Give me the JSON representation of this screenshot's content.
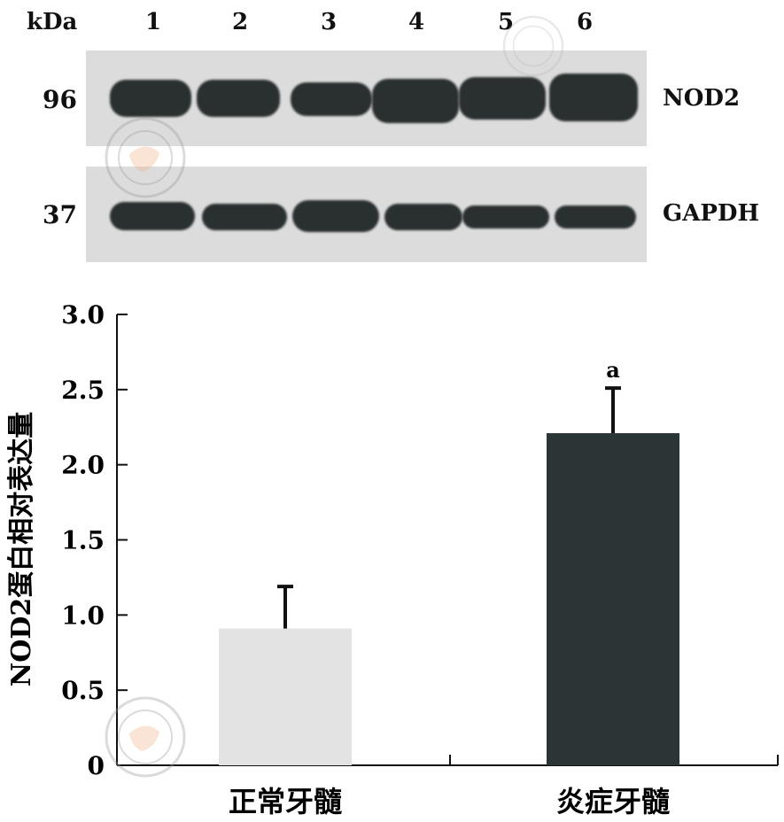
{
  "blot": {
    "kda_label": "kDa",
    "lanes": [
      "1",
      "2",
      "3",
      "4",
      "5",
      "6"
    ],
    "rows": [
      {
        "mw": "96",
        "protein": "NOD2"
      },
      {
        "mw": "37",
        "protein": "GAPDH"
      }
    ]
  },
  "chart_data": {
    "type": "bar",
    "categories": [
      "正常牙髓",
      "炎症牙髓"
    ],
    "values": [
      0.91,
      2.21
    ],
    "errors": [
      0.28,
      0.3
    ],
    "annotations": [
      "",
      "a"
    ],
    "bar_colors": [
      "#e3e3e3",
      "#2c3535"
    ],
    "ylabel": "NOD2蛋白相对表达量",
    "xlabel": "",
    "ylim": [
      0,
      3.0
    ],
    "yticks": [
      "0",
      "0.5",
      "1.0",
      "1.5",
      "2.0",
      "2.5",
      "3.0"
    ],
    "ytick_values": [
      0,
      0.5,
      1.0,
      1.5,
      2.0,
      2.5,
      3.0
    ]
  }
}
